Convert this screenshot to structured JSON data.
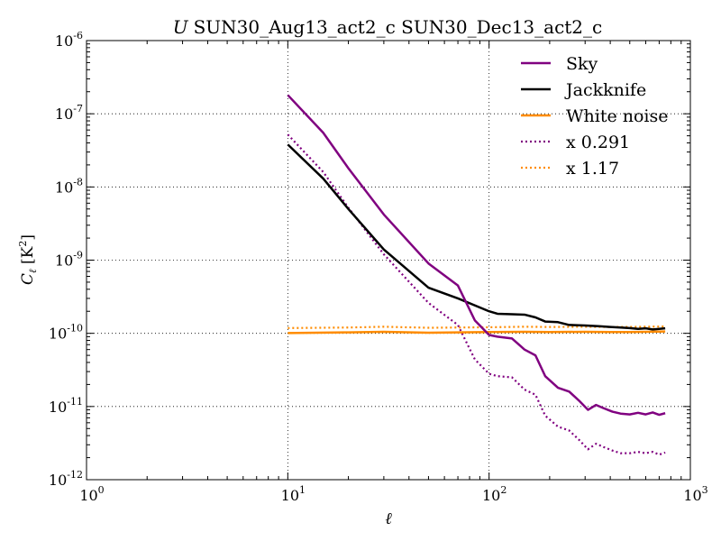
{
  "chart_data": {
    "type": "line",
    "title": "U SUN30_Aug13_act2_c SUN30_Dec13_act2_c",
    "title_prefix": "U",
    "title_rest": "SUN30_Aug13_act2_c SUN30_Dec13_act2_c",
    "xlabel": "ℓ",
    "ylabel": "C_ℓ [K²]",
    "x_scale": "log",
    "y_scale": "log",
    "xlim": [
      1,
      1000
    ],
    "ylim": [
      1e-12,
      1e-06
    ],
    "x_ticks": [
      {
        "value": 1,
        "base": "10",
        "exp": "0"
      },
      {
        "value": 10,
        "base": "10",
        "exp": "1"
      },
      {
        "value": 100,
        "base": "10",
        "exp": "2"
      },
      {
        "value": 1000,
        "base": "10",
        "exp": "3"
      }
    ],
    "y_ticks": [
      {
        "value": 1e-12,
        "base": "10",
        "exp": "-12"
      },
      {
        "value": 1e-11,
        "base": "10",
        "exp": "-11"
      },
      {
        "value": 1e-10,
        "base": "10",
        "exp": "-10"
      },
      {
        "value": 1e-09,
        "base": "10",
        "exp": "-9"
      },
      {
        "value": 1e-08,
        "base": "10",
        "exp": "-8"
      },
      {
        "value": 1e-07,
        "base": "10",
        "exp": "-7"
      },
      {
        "value": 1e-06,
        "base": "10",
        "exp": "-6"
      }
    ],
    "grid": true,
    "legend_position": "top-right",
    "series": [
      {
        "name": "Sky",
        "color": "#800080",
        "style": "solid",
        "x": [
          10,
          15,
          20,
          30,
          50,
          70,
          85,
          100,
          110,
          130,
          150,
          170,
          190,
          220,
          250,
          280,
          310,
          340,
          370,
          410,
          450,
          500,
          550,
          600,
          650,
          700,
          750
        ],
        "y": [
          1.8e-07,
          5.5e-08,
          1.8e-08,
          4.2e-09,
          9e-10,
          4.5e-10,
          1.5e-10,
          9.5e-11,
          9e-11,
          8.5e-11,
          6e-11,
          5e-11,
          2.6e-11,
          1.8e-11,
          1.6e-11,
          1.2e-11,
          9e-12,
          1.05e-11,
          9.5e-12,
          8.5e-12,
          8e-12,
          7.8e-12,
          8.2e-12,
          7.8e-12,
          8.3e-12,
          7.7e-12,
          8.1e-12
        ]
      },
      {
        "name": "Jackknife",
        "color": "#000000",
        "style": "solid",
        "x": [
          10,
          15,
          20,
          30,
          50,
          70,
          100,
          110,
          130,
          150,
          170,
          190,
          220,
          250,
          300,
          350,
          400,
          450,
          500,
          550,
          600,
          650,
          700,
          750
        ],
        "y": [
          3.8e-08,
          1.3e-08,
          5e-09,
          1.4e-09,
          4.2e-10,
          3e-10,
          2e-10,
          1.85e-10,
          1.82e-10,
          1.8e-10,
          1.65e-10,
          1.45e-10,
          1.42e-10,
          1.3e-10,
          1.28e-10,
          1.25e-10,
          1.22e-10,
          1.2e-10,
          1.18e-10,
          1.15e-10,
          1.17e-10,
          1.13e-10,
          1.15e-10,
          1.17e-10
        ]
      },
      {
        "name": "White noise",
        "color": "#FF8C00",
        "style": "solid",
        "x": [
          10,
          20,
          30,
          50,
          70,
          100,
          150,
          200,
          300,
          400,
          500,
          600,
          750
        ],
        "y": [
          1.01e-10,
          1.03e-10,
          1.05e-10,
          1.02e-10,
          1.03e-10,
          1.04e-10,
          1.05e-10,
          1.04e-10,
          1.05e-10,
          1.04e-10,
          1.04e-10,
          1.05e-10,
          1.06e-10
        ]
      },
      {
        "name": "x 0.291",
        "color": "#800080",
        "style": "dotted",
        "x": [
          10,
          15,
          20,
          30,
          50,
          70,
          85,
          100,
          110,
          130,
          150,
          170,
          190,
          220,
          250,
          280,
          310,
          340,
          370,
          410,
          450,
          500,
          550,
          600,
          650,
          700,
          750
        ],
        "y": [
          5.2e-08,
          1.6e-08,
          5.2e-09,
          1.2e-09,
          2.6e-10,
          1.3e-10,
          4.4e-11,
          2.8e-11,
          2.6e-11,
          2.5e-11,
          1.7e-11,
          1.45e-11,
          7.5e-12,
          5.3e-12,
          4.7e-12,
          3.5e-12,
          2.6e-12,
          3.1e-12,
          2.8e-12,
          2.5e-12,
          2.3e-12,
          2.3e-12,
          2.4e-12,
          2.3e-12,
          2.4e-12,
          2.2e-12,
          2.35e-12
        ]
      },
      {
        "name": "x 1.17",
        "color": "#FF8C00",
        "style": "dotted",
        "x": [
          10,
          20,
          30,
          50,
          70,
          100,
          150,
          200,
          300,
          400,
          500,
          600,
          750
        ],
        "y": [
          1.18e-10,
          1.2e-10,
          1.23e-10,
          1.19e-10,
          1.2e-10,
          1.21e-10,
          1.23e-10,
          1.22e-10,
          1.23e-10,
          1.22e-10,
          1.22e-10,
          1.23e-10,
          1.24e-10
        ]
      }
    ]
  }
}
